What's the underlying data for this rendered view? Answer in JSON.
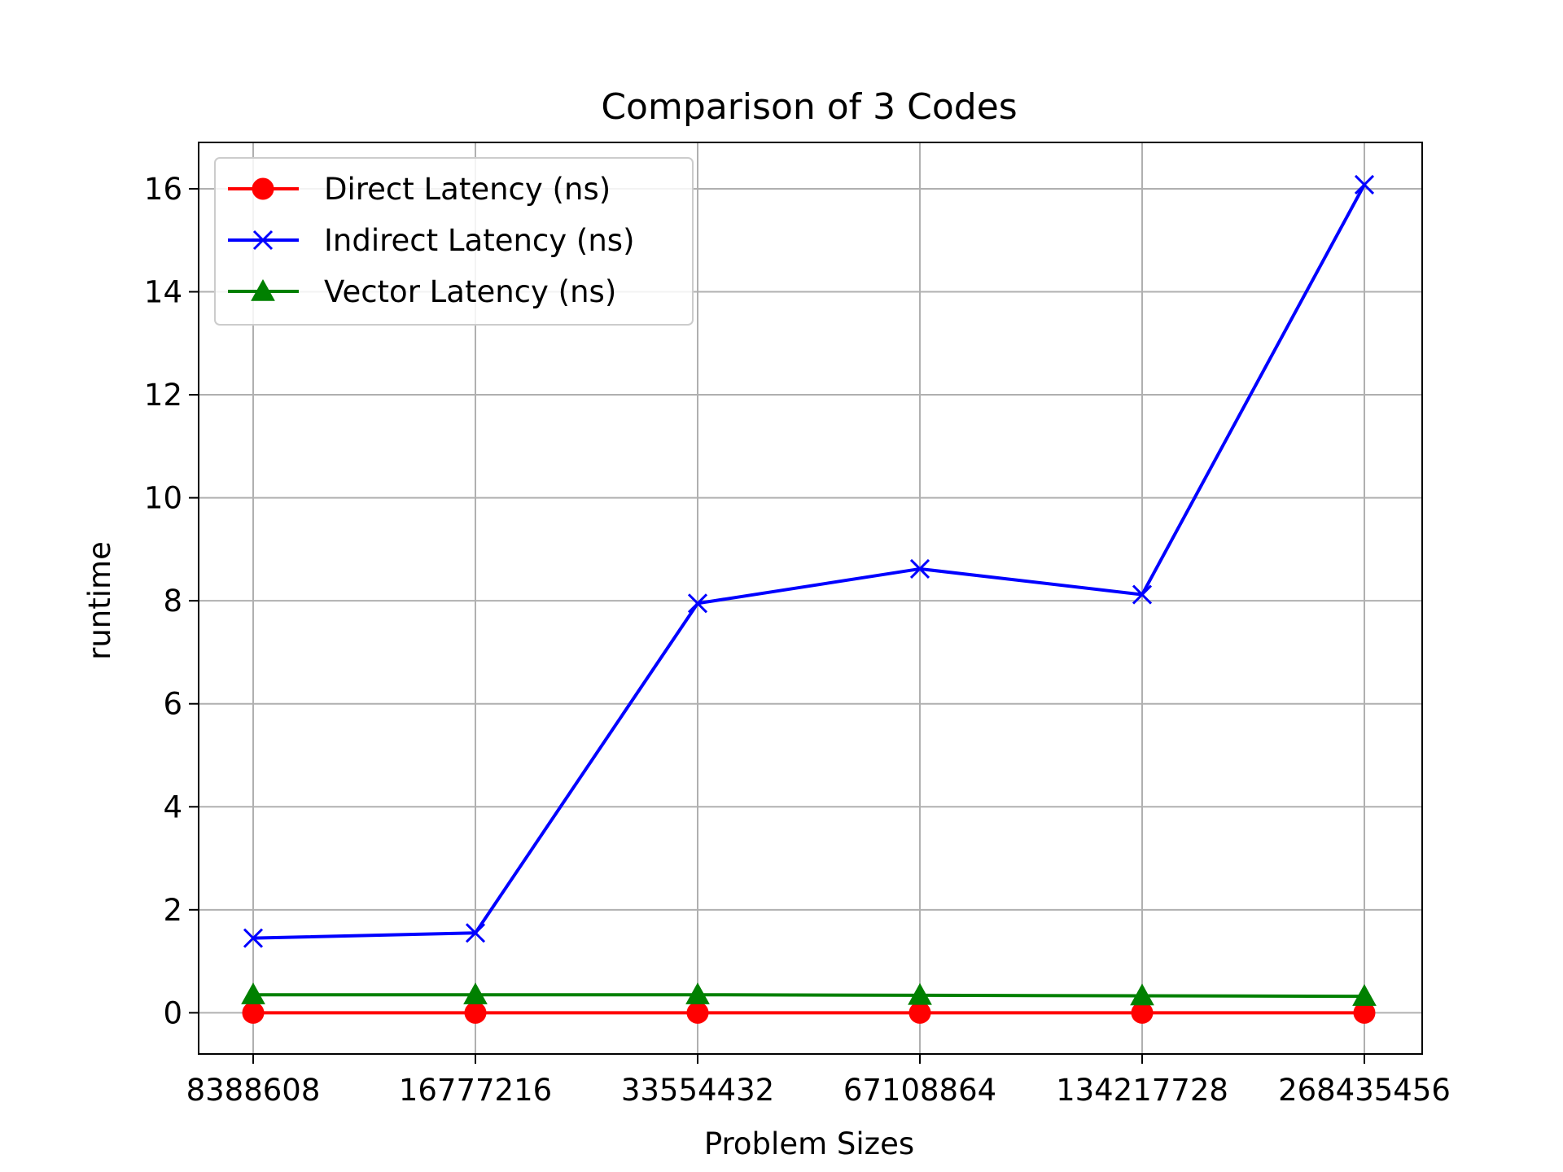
{
  "chart_data": {
    "type": "line",
    "title": "Comparison of 3 Codes",
    "xlabel": "Problem Sizes",
    "ylabel": "runtime",
    "categories": [
      "8388608",
      "16777216",
      "33554432",
      "67108864",
      "134217728",
      "268435456"
    ],
    "yticks": [
      0,
      2,
      4,
      6,
      8,
      10,
      12,
      14,
      16
    ],
    "ylim": [
      -0.8,
      16.9
    ],
    "grid": true,
    "legend_position": "upper-left",
    "series": [
      {
        "name": "Direct Latency (ns)",
        "color": "#ff0000",
        "marker": "circle",
        "values": [
          0.0,
          0.0,
          0.0,
          0.0,
          0.0,
          0.0
        ]
      },
      {
        "name": "Indirect Latency (ns)",
        "color": "#0000ff",
        "marker": "x",
        "values": [
          1.45,
          1.55,
          7.95,
          8.62,
          8.12,
          16.08
        ]
      },
      {
        "name": "Vector Latency (ns)",
        "color": "#008000",
        "marker": "triangle",
        "values": [
          0.35,
          0.35,
          0.35,
          0.34,
          0.33,
          0.32
        ]
      }
    ]
  }
}
